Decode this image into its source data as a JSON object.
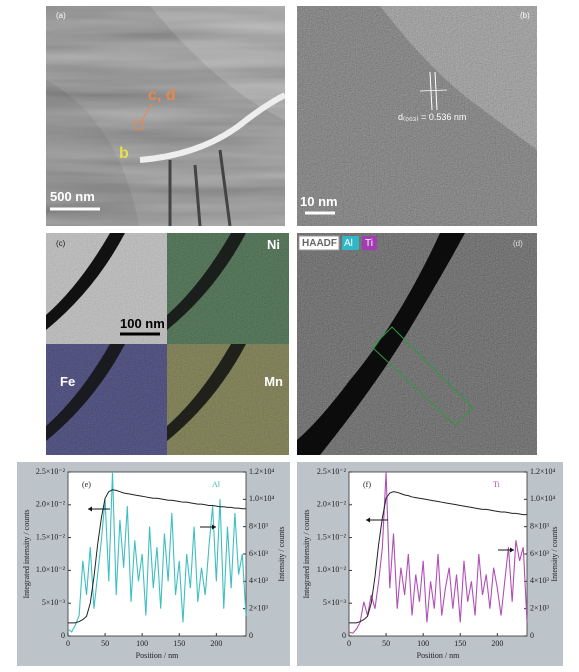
{
  "panels": {
    "a": {
      "label": "(a)",
      "marker_cd": "c, d",
      "marker_b": "b",
      "scale": "500 nm"
    },
    "b": {
      "label": "(b)",
      "annotation": "d₍₀₀₃₎ = 0.536 nm",
      "scale": "10 nm"
    },
    "c": {
      "label": "(c)",
      "ni": "Ni",
      "scale": "100 nm",
      "fe": "Fe",
      "mn": "Mn"
    },
    "d": {
      "label": "(d)",
      "haadf": "HAADF",
      "al": "Al",
      "ti": "Ti"
    }
  },
  "chart_data": [
    {
      "type": "line",
      "panel_label": "(e)",
      "xlabel": "Position / nm",
      "ylabel": "Integrated intensity / counts",
      "y2label": "Intensity / counts",
      "x": [
        0,
        5,
        10,
        15,
        20,
        25,
        30,
        35,
        40,
        45,
        50,
        55,
        60,
        65,
        70,
        75,
        80,
        85,
        90,
        95,
        100,
        105,
        110,
        115,
        120,
        125,
        130,
        135,
        140,
        145,
        150,
        155,
        160,
        165,
        170,
        175,
        180,
        185,
        190,
        195,
        200,
        205,
        210,
        215,
        220,
        225,
        230,
        235,
        240
      ],
      "xlim": [
        0,
        240
      ],
      "xticks": [
        0,
        50,
        100,
        150,
        200
      ],
      "ylim": [
        0,
        0.025
      ],
      "yticks": [
        0,
        {
          "value": 0.005,
          "label": "5×10⁻³"
        },
        {
          "value": 0.01,
          "label": "1.0×10⁻²"
        },
        {
          "value": 0.015,
          "label": "1.5×10⁻²"
        },
        {
          "value": 0.02,
          "label": "2.0×10⁻²"
        },
        {
          "value": 0.025,
          "label": "2.5×10⁻²"
        }
      ],
      "y2lim": [
        0,
        12000
      ],
      "y2ticks": [
        0,
        {
          "value": 2000,
          "label": "2×10³"
        },
        {
          "value": 4000,
          "label": "4×10³"
        },
        {
          "value": 6000,
          "label": "6×10³"
        },
        {
          "value": 8000,
          "label": "8×10³"
        },
        {
          "value": 10000,
          "label": "1.0×10⁴"
        },
        {
          "value": 12000,
          "label": "1.2×10⁴"
        }
      ],
      "series": [
        {
          "color": "#222222",
          "values": [
            0.002,
            0.002,
            0.002,
            0.0022,
            0.0025,
            0.003,
            0.005,
            0.009,
            0.014,
            0.018,
            0.021,
            0.022,
            0.0223,
            0.0222,
            0.022,
            0.0218,
            0.0217,
            0.0216,
            0.0215,
            0.0214,
            0.0213,
            0.0212,
            0.0211,
            0.021,
            0.021,
            0.0209,
            0.0208,
            0.0207,
            0.0207,
            0.0206,
            0.0205,
            0.0204,
            0.0204,
            0.0203,
            0.0202,
            0.0201,
            0.0201,
            0.02,
            0.0199,
            0.0199,
            0.0198,
            0.0197,
            0.0197,
            0.0196,
            0.0196,
            0.0195,
            0.0195,
            0.0194,
            0.0194
          ]
        },
        {
          "name": "Al",
          "color": "#3fbfc0",
          "axis": "y2",
          "values": [
            500,
            300,
            800,
            1500,
            5500,
            3000,
            6500,
            2000,
            4500,
            7000,
            10000,
            4000,
            12000,
            3000,
            8500,
            5000,
            9500,
            2500,
            7000,
            4000,
            6000,
            1500,
            8000,
            3500,
            6500,
            2000,
            7500,
            4000,
            9000,
            3000,
            5500,
            1000,
            6000,
            3500,
            8000,
            2500,
            5000,
            3000,
            6500,
            9500,
            4000,
            10000,
            2000,
            8000,
            3500,
            9000,
            4500,
            6000,
            1500
          ]
        }
      ]
    },
    {
      "type": "line",
      "panel_label": "(f)",
      "xlabel": "Position / nm",
      "ylabel": "Integrated intensity / counts",
      "y2label": "Intensity / counts",
      "x": [
        0,
        5,
        10,
        15,
        20,
        25,
        30,
        35,
        40,
        45,
        50,
        55,
        60,
        65,
        70,
        75,
        80,
        85,
        90,
        95,
        100,
        105,
        110,
        115,
        120,
        125,
        130,
        135,
        140,
        145,
        150,
        155,
        160,
        165,
        170,
        175,
        180,
        185,
        190,
        195,
        200,
        205,
        210,
        215,
        220,
        225,
        230,
        235,
        240
      ],
      "xlim": [
        0,
        240
      ],
      "xticks": [
        0,
        50,
        100,
        150,
        200
      ],
      "ylim": [
        0,
        0.025
      ],
      "yticks": [
        0,
        {
          "value": 0.005,
          "label": "5×10⁻³"
        },
        {
          "value": 0.01,
          "label": "1.0×10⁻²"
        },
        {
          "value": 0.015,
          "label": "1.5×10⁻²"
        },
        {
          "value": 0.02,
          "label": "2.0×10⁻²"
        },
        {
          "value": 0.025,
          "label": "2.5×10⁻²"
        }
      ],
      "y2lim": [
        0,
        12000
      ],
      "y2ticks": [
        0,
        {
          "value": 2000,
          "label": "2×10³"
        },
        {
          "value": 4000,
          "label": "4×10³"
        },
        {
          "value": 6000,
          "label": "6×10³"
        },
        {
          "value": 8000,
          "label": "8×10³"
        },
        {
          "value": 10000,
          "label": "1.0×10⁴"
        },
        {
          "value": 12000,
          "label": "1.2×10⁴"
        }
      ],
      "series": [
        {
          "color": "#222222",
          "values": [
            0.002,
            0.002,
            0.002,
            0.0022,
            0.0025,
            0.003,
            0.005,
            0.009,
            0.014,
            0.018,
            0.021,
            0.0218,
            0.022,
            0.0219,
            0.0217,
            0.0215,
            0.0214,
            0.0212,
            0.0211,
            0.021,
            0.0209,
            0.0208,
            0.0207,
            0.0206,
            0.0205,
            0.0204,
            0.0203,
            0.0202,
            0.0201,
            0.02,
            0.0199,
            0.0198,
            0.0197,
            0.0196,
            0.0195,
            0.0194,
            0.0193,
            0.0193,
            0.0192,
            0.0191,
            0.019,
            0.0189,
            0.0189,
            0.0188,
            0.0187,
            0.0187,
            0.0186,
            0.0185,
            0.0185
          ]
        },
        {
          "name": "Ti",
          "color": "#b04fb6",
          "axis": "y2",
          "values": [
            300,
            200,
            500,
            1000,
            2500,
            1500,
            3000,
            2000,
            4000,
            6500,
            12000,
            3500,
            7500,
            2000,
            5000,
            3000,
            6000,
            1500,
            4500,
            2500,
            5500,
            1000,
            4000,
            2000,
            6000,
            1500,
            3500,
            5000,
            2000,
            4500,
            1000,
            5500,
            2500,
            4000,
            1500,
            6000,
            3000,
            4500,
            2000,
            5000,
            3500,
            1500,
            4000,
            6500,
            2500,
            7000,
            5500,
            6500,
            1000
          ]
        }
      ]
    }
  ]
}
